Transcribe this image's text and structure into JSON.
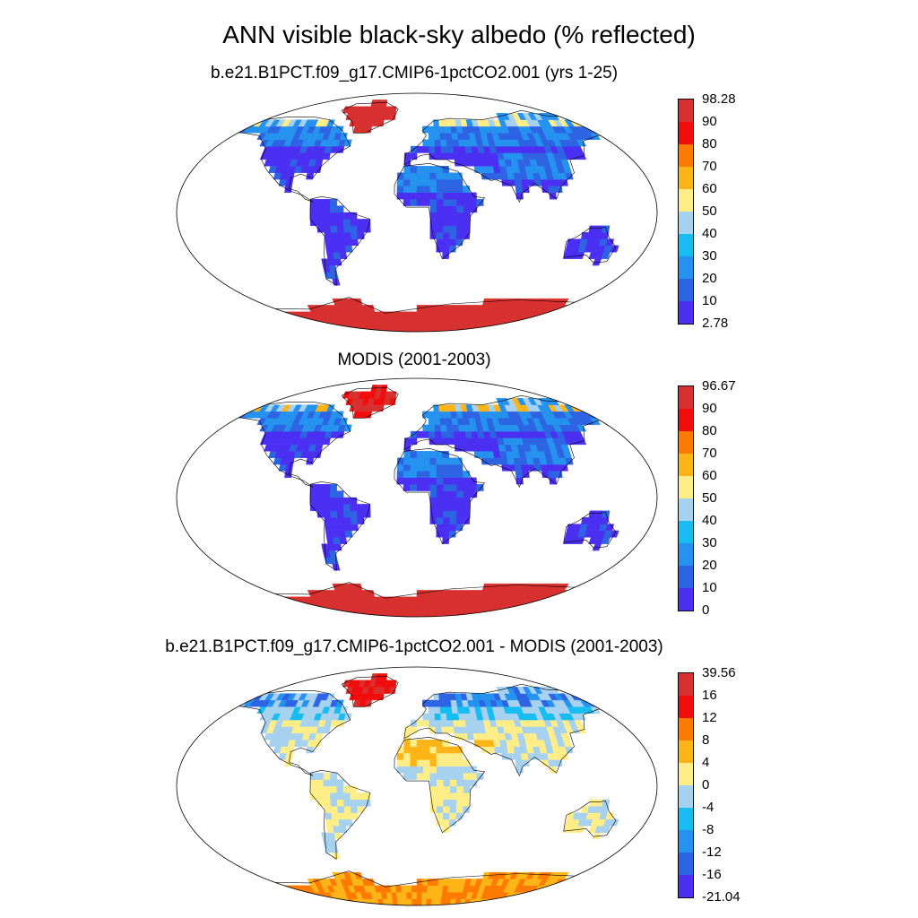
{
  "title": "ANN visible black-sky albedo (% reflected)",
  "panels": [
    {
      "title": "b.e21.B1PCT.f09_g17.CMIP6-1pctCO2.001 (yrs 1-25)",
      "colorbar": {
        "labels": [
          "98.28",
          "90",
          "80",
          "70",
          "60",
          "50",
          "40",
          "30",
          "20",
          "10",
          "2.78"
        ],
        "colors": [
          "#d7302f",
          "#f20d0d",
          "#ff7a00",
          "#fdb416",
          "#ffee88",
          "#a6d1ef",
          "#17bdf0",
          "#2592f0",
          "#2d64e4",
          "#4b2ff2"
        ]
      }
    },
    {
      "title": "MODIS (2001-2003)",
      "colorbar": {
        "labels": [
          "96.67",
          "90",
          "80",
          "70",
          "60",
          "50",
          "40",
          "30",
          "20",
          "10",
          "0"
        ],
        "colors": [
          "#d7302f",
          "#f20d0d",
          "#ff7a00",
          "#fdb416",
          "#ffee88",
          "#a6d1ef",
          "#17bdf0",
          "#2592f0",
          "#2d64e4",
          "#4b2ff2"
        ]
      }
    },
    {
      "title": "b.e21.B1PCT.f09_g17.CMIP6-1pctCO2.001 - MODIS (2001-2003)",
      "colorbar": {
        "labels": [
          "39.56",
          "16",
          "12",
          "8",
          "4",
          "0",
          "-4",
          "-8",
          "-12",
          "-16",
          "-21.04"
        ],
        "colors": [
          "#d7302f",
          "#f20d0d",
          "#ff7a00",
          "#fdb416",
          "#ffee88",
          "#a6d1ef",
          "#17bdf0",
          "#2592f0",
          "#2d64e4",
          "#4b2ff2"
        ]
      }
    }
  ]
}
